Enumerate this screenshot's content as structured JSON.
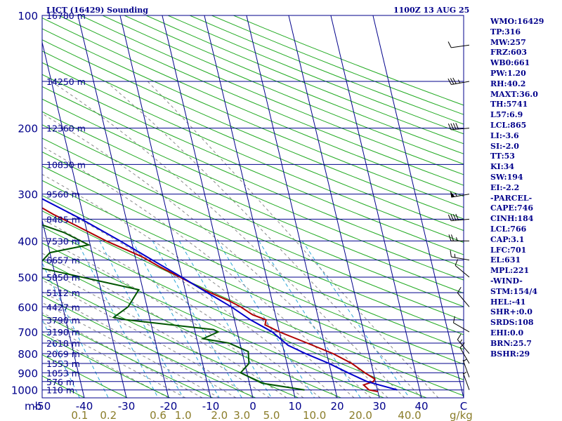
{
  "header": {
    "station": "LICT (16429) Sounding",
    "valid": "1100Z 13 AUG 25"
  },
  "indices": [
    "WMO:16429",
    "TP:316",
    "MW:257",
    "FRZ:603",
    "WB0:661",
    "PW:1.20",
    "RH:40.2",
    "MAXT:36.0",
    "TH:5741",
    "L57:6.9",
    "LCL:865",
    "LI:-3.6",
    "SI:-2.0",
    "TT:53",
    "KI:34",
    "SW:194",
    "EI:-2.2",
    "-PARCEL-",
    "CAPE:746",
    "CINH:184",
    "LCL:766",
    "CAP:3.1",
    "LFC:701",
    "EL:631",
    "MPL:221",
    "-WIND-",
    "STM:154/4",
    "HEL:-41",
    "SHR+:0.0",
    "SRDS:108",
    "EHI:0.0",
    "BRN:25.7",
    "BSHR:29"
  ],
  "colors": {
    "frame": "#00008b",
    "isobar": "#00008b",
    "isotherm": "#00008b",
    "dry_adiabat": "#22aa22",
    "moist_adiabat": "#888888",
    "mixing_ratio": "#2aa5d6",
    "temperature": "#b00000",
    "dewpoint": "#005500",
    "parcel": "#0000cc",
    "wind_barb": "#000000",
    "mr_label": "#8b7d2a"
  },
  "chart_data": {
    "type": "line",
    "pressure_axis": {
      "unit": "mb",
      "levels": [
        100,
        200,
        300,
        400,
        500,
        600,
        700,
        800,
        900,
        1000
      ],
      "range": [
        100,
        1050
      ]
    },
    "temperature_axis": {
      "ticks": [
        "-50",
        "-40",
        "-30",
        "-20",
        "-10",
        "0",
        "10",
        "20",
        "30",
        "40",
        "C"
      ],
      "values": [
        -50,
        -40,
        -30,
        -20,
        -10,
        0,
        10,
        20,
        30,
        40
      ],
      "range": [
        -50,
        50
      ]
    },
    "mixing_ratio_axis": {
      "unit": "g/kg",
      "labels": [
        "0.1",
        "0.2",
        "0.6",
        "1.0",
        "2.0",
        "3.0",
        "5.0",
        "10.0",
        "20.0",
        "40.0"
      ],
      "values": [
        0.1,
        0.2,
        0.6,
        1.0,
        2.0,
        3.0,
        5.0,
        10.0,
        20.0,
        40.0
      ]
    },
    "heights": [
      {
        "p": 100,
        "label": "16780 m"
      },
      {
        "p": 150,
        "label": "14250 m"
      },
      {
        "p": 200,
        "label": "12360 m"
      },
      {
        "p": 250,
        "label": "10830 m"
      },
      {
        "p": 300,
        "label": "9560 m"
      },
      {
        "p": 350,
        "label": "8485 m"
      },
      {
        "p": 400,
        "label": "7530 m"
      },
      {
        "p": 450,
        "label": "6657 m"
      },
      {
        "p": 500,
        "label": "5850 m"
      },
      {
        "p": 550,
        "label": "5112 m"
      },
      {
        "p": 600,
        "label": "4427 m"
      },
      {
        "p": 650,
        "label": "3790 m"
      },
      {
        "p": 700,
        "label": "3190 m"
      },
      {
        "p": 750,
        "label": "2618 m"
      },
      {
        "p": 800,
        "label": "2069 m"
      },
      {
        "p": 850,
        "label": "1553 m"
      },
      {
        "p": 900,
        "label": "1053 m"
      },
      {
        "p": 950,
        "label": "576 m"
      },
      {
        "p": 1000,
        "label": "110 m"
      }
    ],
    "series": [
      {
        "name": "",
        "role": "temperature",
        "points": [
          [
            100,
            -50.1
          ],
          [
            115,
            -55.5
          ],
          [
            130,
            -59.4
          ],
          [
            150,
            -61.5
          ],
          [
            170,
            -57.8
          ],
          [
            200,
            -53.5
          ],
          [
            220,
            -52.5
          ],
          [
            240,
            -51.2
          ],
          [
            250,
            -51.4
          ],
          [
            270,
            -48.1
          ],
          [
            285,
            -46
          ],
          [
            300,
            -44
          ],
          [
            310,
            -40
          ],
          [
            325,
            -39.6
          ],
          [
            340,
            -37
          ],
          [
            360,
            -33
          ],
          [
            400,
            -26
          ],
          [
            440,
            -18.5
          ],
          [
            470,
            -14.6
          ],
          [
            500,
            -10.5
          ],
          [
            540,
            -5.6
          ],
          [
            580,
            0
          ],
          [
            600,
            2.2
          ],
          [
            630,
            4.6
          ],
          [
            650,
            7.5
          ],
          [
            670,
            7
          ],
          [
            700,
            10
          ],
          [
            750,
            16
          ],
          [
            800,
            21.5
          ],
          [
            850,
            25.4
          ],
          [
            900,
            28
          ],
          [
            935,
            30
          ],
          [
            950,
            29.5
          ],
          [
            970,
            27
          ],
          [
            1000,
            28
          ],
          [
            1010,
            30
          ]
        ]
      },
      {
        "name": "",
        "role": "dewpoint",
        "points": [
          [
            115,
            -79.7
          ],
          [
            130,
            -79.7
          ],
          [
            150,
            -80.5
          ],
          [
            170,
            -79.7
          ],
          [
            195,
            -80
          ],
          [
            210,
            -79.2
          ],
          [
            250,
            -70.2
          ],
          [
            285,
            -64.7
          ],
          [
            300,
            -55.6
          ],
          [
            315,
            -47
          ],
          [
            320,
            -46.9
          ],
          [
            335,
            -50
          ],
          [
            340,
            -51
          ],
          [
            345,
            -58
          ],
          [
            350,
            -51
          ],
          [
            360,
            -41
          ],
          [
            380,
            -35.5
          ],
          [
            410,
            -30.4
          ],
          [
            430,
            -40
          ],
          [
            470,
            -44
          ],
          [
            540,
            -21
          ],
          [
            600,
            -24.5
          ],
          [
            640,
            -28.5
          ],
          [
            650,
            -25.6
          ],
          [
            690,
            -5.5
          ],
          [
            700,
            -4.5
          ],
          [
            730,
            -8.5
          ],
          [
            750,
            -2.6
          ],
          [
            790,
            1.5
          ],
          [
            850,
            1
          ],
          [
            900,
            -1.5
          ],
          [
            960,
            3
          ],
          [
            1000,
            12.7
          ]
        ]
      },
      {
        "name": "",
        "role": "parcel",
        "points": [
          [
            115,
            -92
          ],
          [
            150,
            -81.1
          ],
          [
            200,
            -67.4
          ],
          [
            250,
            -53.8
          ],
          [
            300,
            -40.7
          ],
          [
            350,
            -30.6
          ],
          [
            400,
            -22.7
          ],
          [
            450,
            -16.1
          ],
          [
            500,
            -10.1
          ],
          [
            550,
            -4.9
          ],
          [
            600,
            0
          ],
          [
            650,
            3.8
          ],
          [
            700,
            8.3
          ],
          [
            760,
            11.3
          ],
          [
            800,
            15
          ],
          [
            850,
            20
          ],
          [
            900,
            24
          ],
          [
            950,
            28
          ],
          [
            1000,
            34.7
          ]
        ]
      }
    ],
    "wind_barbs": [
      {
        "p": 120,
        "dir": 262,
        "kt": 10
      },
      {
        "p": 150,
        "dir": 260,
        "kt": 35
      },
      {
        "p": 200,
        "dir": 265,
        "kt": 40
      },
      {
        "p": 300,
        "dir": 260,
        "kt": 55
      },
      {
        "p": 350,
        "dir": 265,
        "kt": 40
      },
      {
        "p": 400,
        "dir": 270,
        "kt": 25
      },
      {
        "p": 450,
        "dir": 280,
        "kt": 15
      },
      {
        "p": 500,
        "dir": 310,
        "kt": 10
      },
      {
        "p": 600,
        "dir": 320,
        "kt": 10
      },
      {
        "p": 700,
        "dir": 300,
        "kt": 10
      },
      {
        "p": 800,
        "dir": 320,
        "kt": 15
      },
      {
        "p": 850,
        "dir": 330,
        "kt": 10
      },
      {
        "p": 925,
        "dir": 340,
        "kt": 5
      },
      {
        "p": 1000,
        "dir": 340,
        "kt": 5
      }
    ]
  }
}
